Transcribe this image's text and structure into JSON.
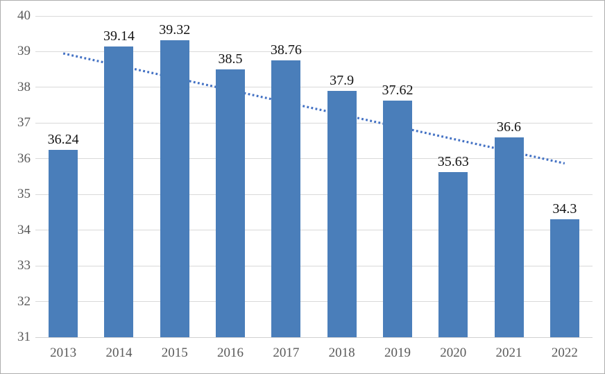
{
  "chart_data": {
    "type": "bar",
    "title": "",
    "xlabel": "",
    "ylabel": "",
    "categories": [
      "2013",
      "2014",
      "2015",
      "2016",
      "2017",
      "2018",
      "2019",
      "2020",
      "2021",
      "2022"
    ],
    "values": [
      36.24,
      39.14,
      39.32,
      38.5,
      38.76,
      37.9,
      37.62,
      35.63,
      36.6,
      34.3
    ],
    "data_labels": [
      "36.24",
      "39.14",
      "39.32",
      "38.5",
      "38.76",
      "37.9",
      "37.62",
      "35.63",
      "36.6",
      "34.3"
    ],
    "ylim": [
      31,
      40
    ],
    "yticks": [
      40,
      39,
      38,
      37,
      36,
      35,
      34,
      33,
      32,
      31
    ],
    "grid": true,
    "legend": false,
    "bar_color": "#4a7eba",
    "gridline_color": "#d9d9d9",
    "axis_text_color": "#595959",
    "label_text_color": "#141414",
    "trendline": {
      "type": "linear",
      "style": "dotted",
      "color": "#4472c4",
      "start_value": 38.95,
      "end_value": 35.87
    }
  }
}
